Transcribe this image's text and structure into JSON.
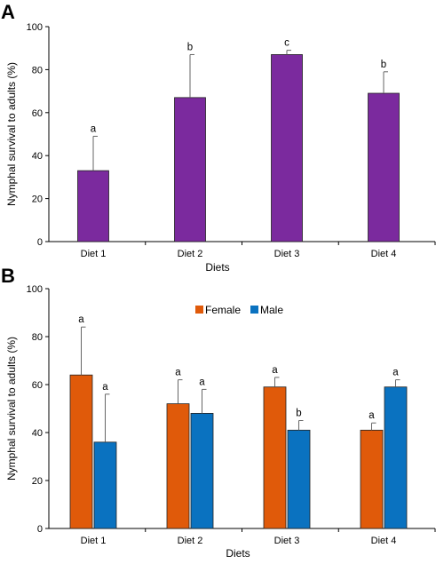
{
  "chart_data": [
    {
      "panel": "A",
      "type": "bar",
      "categories": [
        "Diet 1",
        "Diet 2",
        "Diet 3",
        "Diet 4"
      ],
      "values": [
        33,
        67,
        87,
        69
      ],
      "error_upper": [
        16,
        20,
        2,
        10
      ],
      "significance": [
        "a",
        "b",
        "c",
        "b"
      ],
      "color": "#7b2a9e",
      "xlabel": "Diets",
      "ylabel": "Nymphal survival to adults (%)",
      "ylim": [
        0,
        100
      ],
      "yticks": [
        0,
        20,
        40,
        60,
        80,
        100
      ],
      "grid": false,
      "legend": null
    },
    {
      "panel": "B",
      "type": "bar",
      "categories": [
        "Diet 1",
        "Diet 2",
        "Diet 3",
        "Diet 4"
      ],
      "series": [
        {
          "name": "Female",
          "color": "#e05a0a",
          "values": [
            64,
            52,
            59,
            41
          ],
          "error_upper": [
            20,
            10,
            4,
            3
          ],
          "significance": [
            "a",
            "a",
            "a",
            "a"
          ]
        },
        {
          "name": "Male",
          "color": "#0a72c0",
          "values": [
            36,
            48,
            41,
            59
          ],
          "error_upper": [
            20,
            10,
            4,
            3
          ],
          "significance": [
            "a",
            "a",
            "b",
            "a"
          ]
        }
      ],
      "xlabel": "Diets",
      "ylabel": "Nymphal survival to adults (%)",
      "ylim": [
        0,
        100
      ],
      "yticks": [
        0,
        20,
        40,
        60,
        80,
        100
      ],
      "grid": false,
      "legend": "top-center"
    }
  ]
}
